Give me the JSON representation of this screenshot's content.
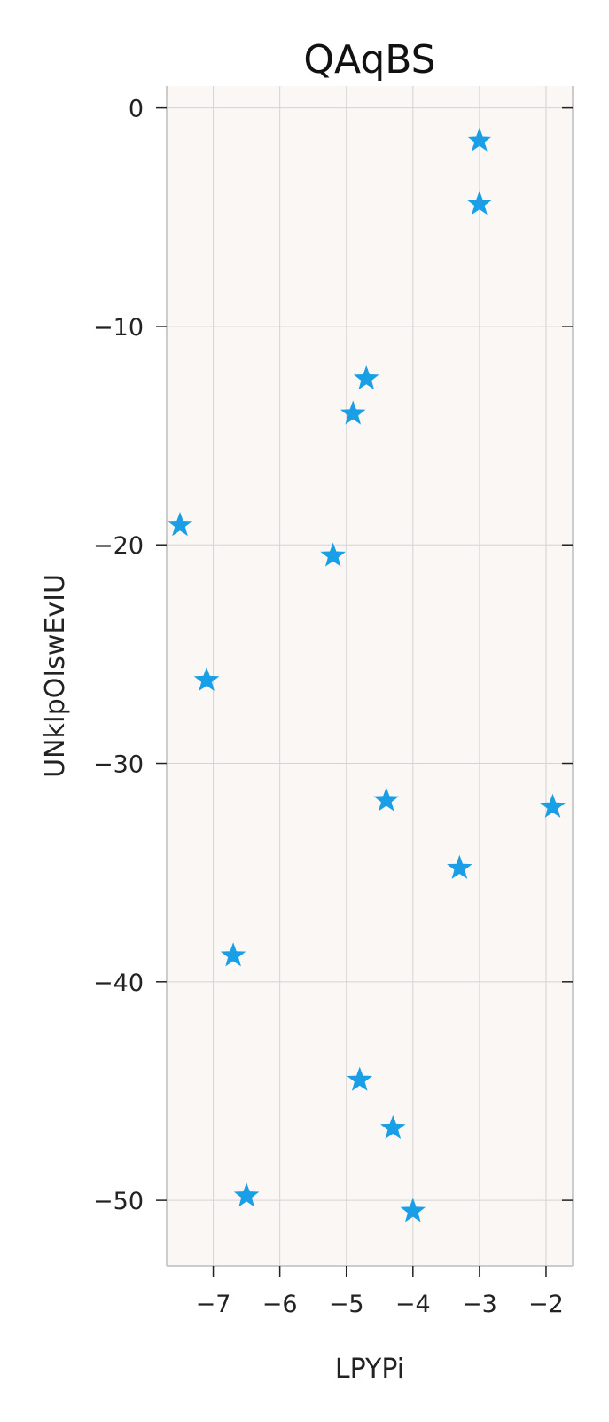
{
  "chart_data": {
    "type": "scatter",
    "title": "QAqBS",
    "xlabel": "LPYPi",
    "ylabel": "UNkIpOIswEvIU",
    "xlim": [
      -7.7,
      -1.6
    ],
    "ylim": [
      -53,
      1
    ],
    "xticks": [
      -7,
      -6,
      -5,
      -4,
      -3,
      -2
    ],
    "yticks": [
      0,
      -10,
      -20,
      -30,
      -40,
      -50
    ],
    "grid": true,
    "marker": "star",
    "colors": {
      "marker": "#1a9fe6",
      "plot_bg": "#faf7f4",
      "grid": "#d4d4d4",
      "spine": "#cccccc"
    },
    "series": [
      {
        "x": [
          -3.0,
          -3.0,
          -4.7,
          -4.9,
          -7.5,
          -5.2,
          -7.1,
          -4.4,
          -1.9,
          -3.3,
          -6.7,
          -4.8,
          -4.3,
          -4.0,
          -6.5
        ],
        "y": [
          -1.5,
          -4.4,
          -12.4,
          -14.0,
          -19.1,
          -20.5,
          -26.2,
          -31.7,
          -32.0,
          -34.8,
          -38.8,
          -44.5,
          -46.7,
          -50.5,
          -49.8
        ]
      }
    ]
  }
}
